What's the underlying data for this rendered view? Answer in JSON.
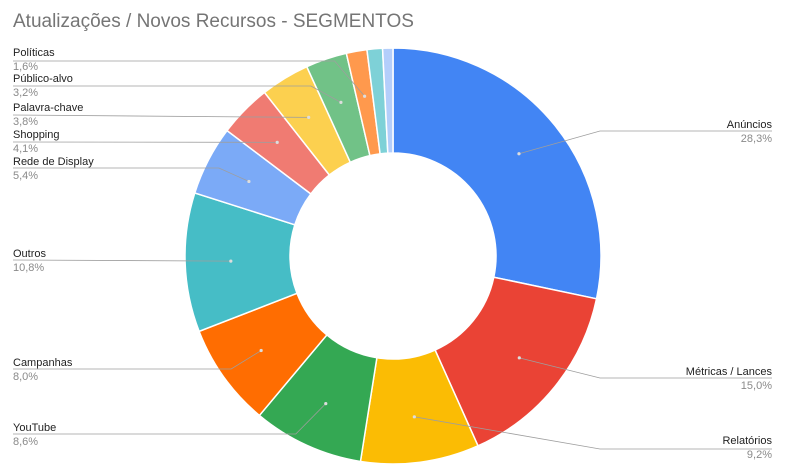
{
  "chart_data": {
    "type": "pie",
    "variant": "donut",
    "title": "Atualizações / Novos Recursos - SEGMENTOS",
    "slices": [
      {
        "label": "Anúncios",
        "value": 28.3,
        "value_text": "28,3%",
        "color": "#4285F4"
      },
      {
        "label": "Métricas / Lances",
        "value": 15.0,
        "value_text": "15,0%",
        "color": "#EA4335"
      },
      {
        "label": "Relatórios",
        "value": 9.2,
        "value_text": "9,2%",
        "color": "#FBBC04"
      },
      {
        "label": "YouTube",
        "value": 8.6,
        "value_text": "8,6%",
        "color": "#34A853"
      },
      {
        "label": "Campanhas",
        "value": 8.0,
        "value_text": "8,0%",
        "color": "#FF6D01"
      },
      {
        "label": "Outros",
        "value": 10.8,
        "value_text": "10,8%",
        "color": "#46BDC6"
      },
      {
        "label": "Rede de Display",
        "value": 5.4,
        "value_text": "5,4%",
        "color": "#7BAAF7"
      },
      {
        "label": "Shopping",
        "value": 4.1,
        "value_text": "4,1%",
        "color": "#F07B72"
      },
      {
        "label": "Palavra-chave",
        "value": 3.8,
        "value_text": "3,8%",
        "color": "#FCD04F"
      },
      {
        "label": "Público-alvo",
        "value": 3.2,
        "value_text": "3,2%",
        "color": "#71C287"
      },
      {
        "label": "Políticas",
        "value": 1.6,
        "value_text": "1,6%",
        "color": "#FF994D"
      },
      {
        "label": "",
        "value": 1.2,
        "value_text": "",
        "color": "#7ED1D7"
      },
      {
        "label": "",
        "value": 0.8,
        "value_text": "",
        "color": "#B3CEFB"
      }
    ],
    "legend": "labels-with-leader-lines",
    "grid": false
  }
}
